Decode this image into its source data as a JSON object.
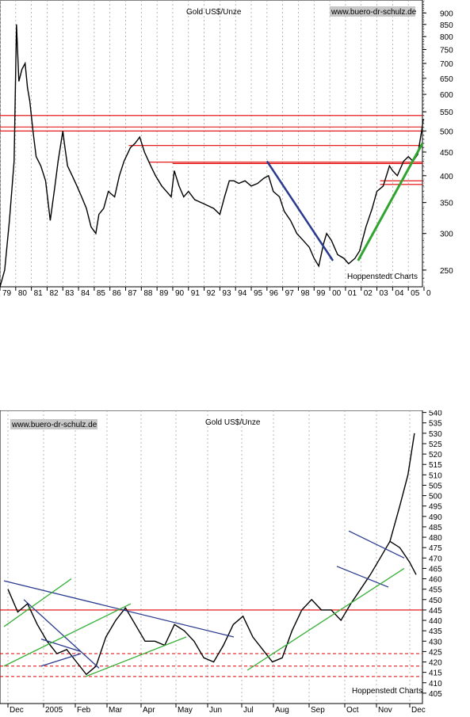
{
  "chart_data": [
    {
      "type": "line",
      "title": "Gold US$/Unze",
      "watermark": "www.buero-dr-schulz.de",
      "source": "Hoppenstedt Charts",
      "y_scale": "log",
      "y_ticks": [
        250,
        300,
        350,
        400,
        450,
        500,
        550,
        600,
        650,
        700,
        750,
        800,
        850,
        900
      ],
      "ylim": [
        230,
        960
      ],
      "x_labels": [
        "79",
        "80",
        "81",
        "82",
        "83",
        "84",
        "85",
        "86",
        "87",
        "88",
        "89",
        "90",
        "91",
        "92",
        "93",
        "94",
        "95",
        "96",
        "97",
        "98",
        "99",
        "00",
        "01",
        "02",
        "03",
        "04",
        "05",
        "0"
      ],
      "xlim": [
        1979,
        2005.9
      ],
      "grid": "vertical-dashed",
      "series": [
        {
          "x": [
            1979.0,
            1979.3,
            1979.6,
            1979.9,
            1980.05,
            1980.2,
            1980.4,
            1980.6,
            1980.75,
            1980.9,
            1981.1,
            1981.3,
            1981.6,
            1981.9,
            1982.2,
            1982.5,
            1982.7,
            1983.0,
            1983.1,
            1983.3,
            1983.6,
            1983.9,
            1984.2,
            1984.5,
            1984.8,
            1985.1,
            1985.3,
            1985.6,
            1985.9,
            1986.3,
            1986.6,
            1986.9,
            1987.3,
            1987.6,
            1987.9,
            1988.2,
            1988.6,
            1988.9,
            1989.3,
            1989.6,
            1989.9,
            1990.1,
            1990.4,
            1990.7,
            1991.0,
            1991.4,
            1991.8,
            1992.2,
            1992.6,
            1993.0,
            1993.3,
            1993.6,
            1993.9,
            1994.2,
            1994.6,
            1995.0,
            1995.4,
            1995.8,
            1996.1,
            1996.4,
            1996.8,
            1997.1,
            1997.5,
            1997.9,
            1998.3,
            1998.7,
            1999.0,
            1999.3,
            1999.6,
            1999.8,
            2000.1,
            2000.5,
            2000.9,
            2001.2,
            2001.6,
            2001.9,
            2002.3,
            2002.7,
            2003.0,
            2003.4,
            2003.8,
            2004.0,
            2004.3,
            2004.7,
            2005.0,
            2005.3,
            2005.6,
            2005.85,
            2005.95
          ],
          "values": [
            230,
            250,
            320,
            430,
            850,
            640,
            680,
            700,
            620,
            580,
            500,
            440,
            420,
            390,
            320,
            380,
            430,
            500,
            470,
            420,
            400,
            380,
            360,
            340,
            310,
            300,
            330,
            340,
            370,
            360,
            400,
            430,
            460,
            470,
            485,
            450,
            420,
            400,
            380,
            370,
            360,
            410,
            380,
            360,
            370,
            355,
            350,
            345,
            340,
            330,
            360,
            390,
            390,
            385,
            390,
            380,
            385,
            395,
            400,
            370,
            360,
            335,
            320,
            300,
            290,
            280,
            265,
            255,
            285,
            300,
            290,
            270,
            265,
            258,
            265,
            275,
            310,
            340,
            370,
            380,
            420,
            410,
            400,
            430,
            440,
            430,
            445,
            500,
            530
          ],
          "name": ""
        }
      ]
    },
    {
      "type": "bar",
      "title": "Gold US$/Unze",
      "watermark": "www.buero-dr-schulz.de",
      "source": "Hoppenstedt Charts",
      "y_ticks": [
        405,
        410,
        415,
        420,
        425,
        430,
        435,
        440,
        445,
        450,
        455,
        460,
        465,
        470,
        475,
        480,
        485,
        490,
        495,
        500,
        505,
        510,
        515,
        520,
        525,
        530,
        535,
        540
      ],
      "ylim": [
        400,
        541
      ],
      "x_labels": [
        "Dec",
        "2005",
        "Feb",
        "Mar",
        "Apr",
        "May",
        "Jun",
        "Jul",
        "Aug",
        "Sep",
        "Oct",
        "Nov",
        "Dec"
      ],
      "grid": "vertical-dashed",
      "series": [
        {
          "x": [
            0,
            0.3,
            0.6,
            0.9,
            1.2,
            1.5,
            1.8,
            2.1,
            2.4,
            2.7,
            3.0,
            3.3,
            3.6,
            3.9,
            4.2,
            4.5,
            4.8,
            5.1,
            5.4,
            5.7,
            6.0,
            6.3,
            6.6,
            6.9,
            7.2,
            7.5,
            7.8,
            8.1,
            8.4,
            8.7,
            9.0,
            9.3,
            9.6,
            9.9,
            10.2,
            10.5,
            10.8,
            11.1,
            11.4,
            11.7,
            12.0,
            12.3,
            12.5
          ],
          "values": [
            455,
            444,
            448,
            438,
            430,
            424,
            426,
            420,
            414,
            418,
            432,
            440,
            446,
            438,
            430,
            430,
            428,
            438,
            435,
            430,
            422,
            420,
            428,
            438,
            442,
            432,
            426,
            420,
            422,
            435,
            445,
            450,
            445,
            445,
            440,
            448,
            455,
            462,
            470,
            478,
            475,
            468,
            462
          ],
          "name": ""
        }
      ]
    }
  ]
}
